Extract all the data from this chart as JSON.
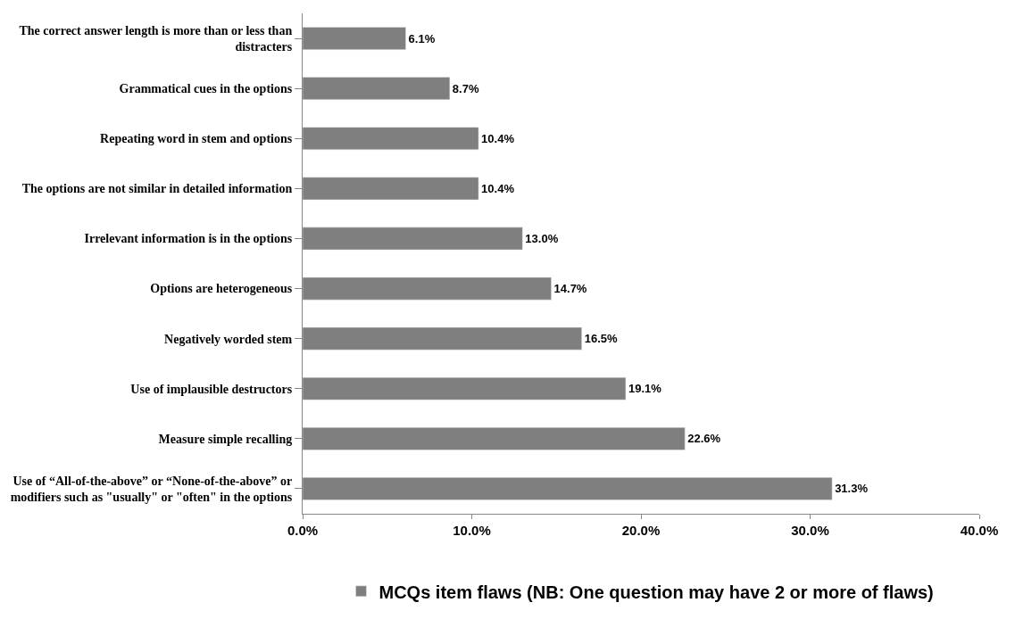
{
  "chart_data": {
    "type": "bar",
    "orientation": "horizontal",
    "categories": [
      "The correct answer length is more than or less than distracters",
      "Grammatical cues in the options",
      "Repeating word in stem and options",
      "The options are not similar in detailed information",
      "Irrelevant information is in the options",
      "Options are heterogeneous",
      "Negatively worded stem",
      "Use of implausible destructors",
      "Measure simple recalling",
      "Use of “All-of-the-above” or “None-of-the-above” or modifiers such as \"usually\" or \"often\" in the options"
    ],
    "series": [
      {
        "name": "MCQs item flaws (NB: One question may have 2 or more of flaws)",
        "color": "#7f7f7f",
        "values": [
          6.1,
          8.7,
          10.4,
          10.4,
          13.0,
          14.7,
          16.5,
          19.1,
          22.6,
          31.3
        ],
        "value_labels": [
          "6.1%",
          "8.7%",
          "10.4%",
          "10.4%",
          "13.0%",
          "14.7%",
          "16.5%",
          "19.1%",
          "22.6%",
          "31.3%"
        ]
      }
    ],
    "xlim": [
      0,
      40
    ],
    "xticks": [
      {
        "value": 0,
        "label": "0.0%"
      },
      {
        "value": 10,
        "label": "10.0%"
      },
      {
        "value": 20,
        "label": "20.0%"
      },
      {
        "value": 30,
        "label": "30.0%"
      },
      {
        "value": 40,
        "label": "40.0%"
      }
    ],
    "legend": "bottom"
  }
}
